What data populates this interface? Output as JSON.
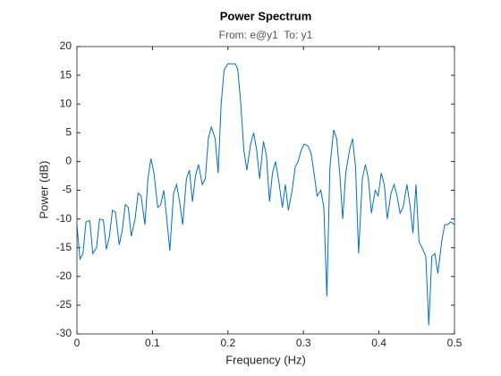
{
  "chart_data": {
    "type": "line",
    "title": "Power Spectrum",
    "subtitle": "From: e@y1  To: y1",
    "xlabel": "Frequency  (Hz)",
    "ylabel": "Power (dB)",
    "xlim": [
      0,
      0.5
    ],
    "ylim": [
      -30,
      20
    ],
    "xticks": [
      0,
      0.1,
      0.2,
      0.3,
      0.4,
      0.5
    ],
    "yticks": [
      -30,
      -25,
      -20,
      -15,
      -10,
      -5,
      0,
      5,
      10,
      15,
      20
    ],
    "grid": false,
    "series": [
      {
        "color": "#0072bd",
        "x": [
          0,
          0.004,
          0.008,
          0.012,
          0.017,
          0.021,
          0.026,
          0.03,
          0.035,
          0.039,
          0.043,
          0.047,
          0.051,
          0.056,
          0.06,
          0.064,
          0.068,
          0.072,
          0.077,
          0.081,
          0.085,
          0.09,
          0.094,
          0.098,
          0.102,
          0.107,
          0.111,
          0.115,
          0.119,
          0.123,
          0.128,
          0.132,
          0.136,
          0.14,
          0.145,
          0.149,
          0.153,
          0.157,
          0.161,
          0.166,
          0.17,
          0.174,
          0.178,
          0.183,
          0.187,
          0.191,
          0.195,
          0.2,
          0.205,
          0.21,
          0.213,
          0.217,
          0.221,
          0.225,
          0.23,
          0.234,
          0.238,
          0.242,
          0.247,
          0.251,
          0.255,
          0.259,
          0.263,
          0.268,
          0.272,
          0.276,
          0.28,
          0.285,
          0.289,
          0.293,
          0.297,
          0.301,
          0.306,
          0.31,
          0.314,
          0.318,
          0.323,
          0.327,
          0.331,
          0.335,
          0.34,
          0.344,
          0.348,
          0.352,
          0.356,
          0.361,
          0.365,
          0.369,
          0.373,
          0.378,
          0.382,
          0.386,
          0.39,
          0.395,
          0.399,
          0.403,
          0.407,
          0.411,
          0.416,
          0.42,
          0.424,
          0.428,
          0.432,
          0.437,
          0.441,
          0.445,
          0.449,
          0.453,
          0.457,
          0.462,
          0.466,
          0.47,
          0.474,
          0.478,
          0.483,
          0.487,
          0.491,
          0.495,
          0.5
        ],
        "values": [
          -11,
          -17,
          -16,
          -10.5,
          -10.3,
          -16,
          -15,
          -10,
          -10.2,
          -15.3,
          -13,
          -8.5,
          -8.8,
          -14.5,
          -12,
          -7.5,
          -8,
          -13,
          -10,
          -5.5,
          -6,
          -11,
          -3,
          0.5,
          -2,
          -8,
          -7.5,
          -5,
          -10,
          -15.5,
          -5.5,
          -4,
          -7,
          -11,
          -3,
          -1.5,
          -7,
          -2.5,
          -0.5,
          -4,
          -3,
          4,
          6,
          4,
          -2,
          10,
          16,
          17,
          17,
          17,
          16,
          10,
          2,
          -1.5,
          3,
          5,
          2,
          -3,
          3.5,
          1,
          -7,
          -2,
          0,
          -4,
          -8,
          -4,
          -8.5,
          -5,
          -1,
          0,
          2,
          3,
          2.7,
          1.5,
          -2,
          -6,
          -5,
          -8,
          -23.5,
          -1,
          5.5,
          4,
          -2,
          -10,
          -2,
          2,
          4,
          -1,
          -16,
          -3,
          -0.5,
          -3,
          -9,
          -5,
          -6,
          -2,
          -4,
          -10,
          -5.5,
          -4,
          -6,
          -9,
          -8,
          -4,
          -7.5,
          -12.5,
          -4,
          -14,
          -15,
          -16.5,
          -28.5,
          -16.5,
          -16,
          -19.5,
          -14,
          -11,
          -11,
          -10.5,
          -11
        ]
      }
    ]
  }
}
